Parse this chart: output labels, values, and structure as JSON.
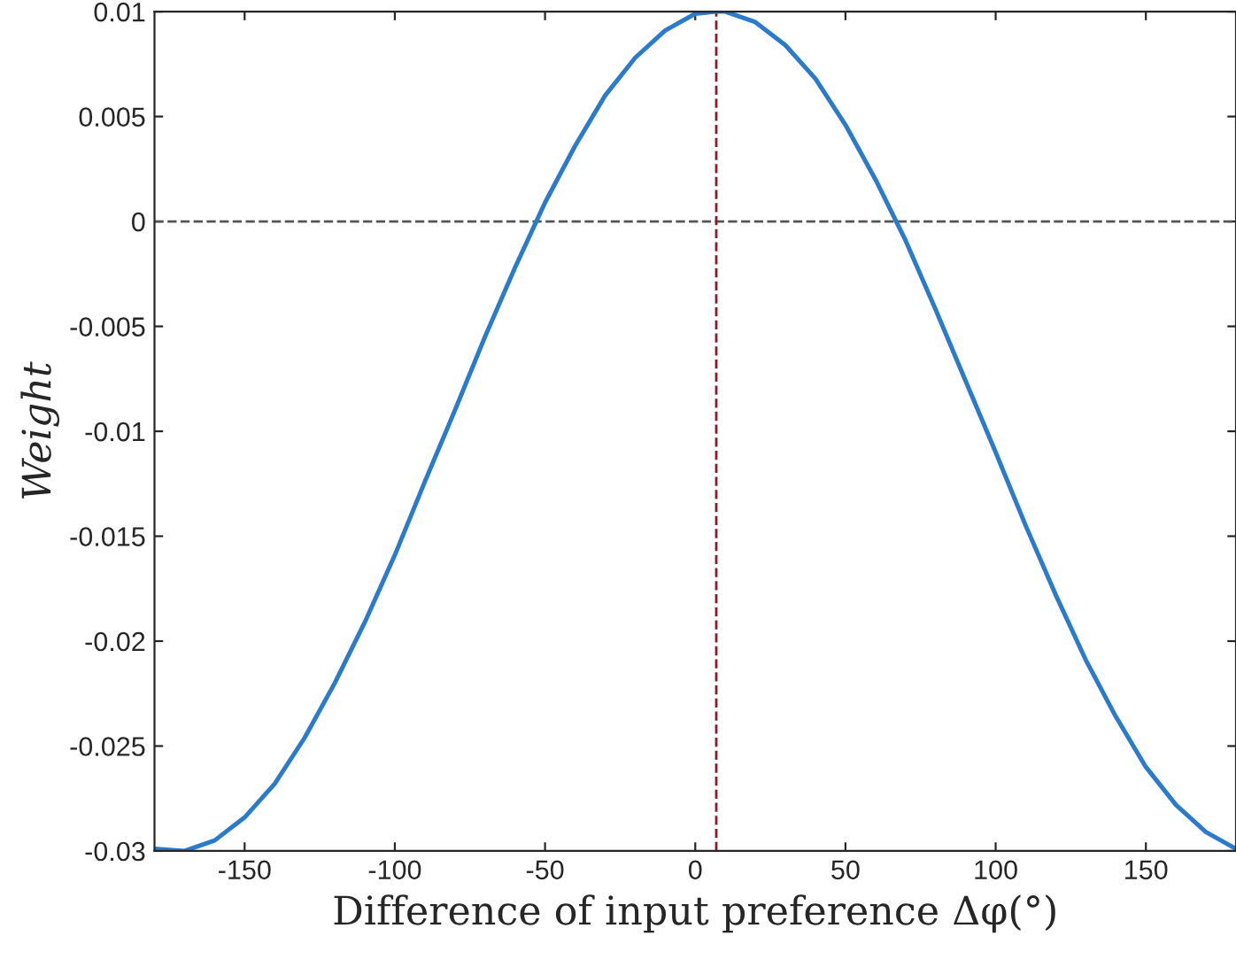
{
  "chart_data": {
    "type": "line",
    "xlabel": "Difference of input preference Δφ(°)",
    "ylabel": "Weight",
    "x": [
      -180,
      -170,
      -160,
      -150,
      -140,
      -130,
      -120,
      -110,
      -100,
      -90,
      -80,
      -70,
      -60,
      -50,
      -40,
      -30,
      -20,
      -10,
      0,
      7,
      10,
      20,
      30,
      40,
      50,
      60,
      70,
      80,
      90,
      100,
      110,
      120,
      130,
      140,
      150,
      160,
      170,
      180
    ],
    "series": [
      {
        "color": "#2b7bcc",
        "values": [
          -0.0299,
          -0.03,
          -0.0295,
          -0.0284,
          -0.0268,
          -0.0246,
          -0.022,
          -0.0191,
          -0.0159,
          -0.0124,
          -0.009,
          -0.0055,
          -0.0022,
          0.0009,
          0.0036,
          0.006,
          0.0078,
          0.0091,
          0.0099,
          0.01,
          0.01,
          0.0095,
          0.0084,
          0.0068,
          0.0046,
          0.002,
          -0.0009,
          -0.0042,
          -0.0076,
          -0.011,
          -0.0145,
          -0.0178,
          -0.0209,
          -0.0236,
          -0.026,
          -0.0278,
          -0.0291,
          -0.0299
        ]
      }
    ],
    "xlim": [
      -180,
      180
    ],
    "ylim": [
      -0.03,
      0.01
    ],
    "xticks": [
      -150,
      -100,
      -50,
      0,
      50,
      100,
      150
    ],
    "yticks": [
      -0.03,
      -0.025,
      -0.02,
      -0.015,
      -0.01,
      -0.005,
      0,
      0.005,
      0.01
    ],
    "ref_lines": [
      {
        "axis": "y",
        "value": 0,
        "color": "#555555",
        "line_style": "dashed"
      },
      {
        "axis": "x",
        "value": 7,
        "color": "#8b1a2b",
        "line_style": "dashed"
      }
    ],
    "grid": false,
    "legend": false,
    "marker": "none",
    "line_style": "solid"
  }
}
